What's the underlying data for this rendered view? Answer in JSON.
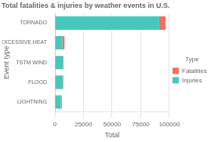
{
  "chart_data": {
    "type": "bar",
    "orientation": "horizontal",
    "stacked": true,
    "title": "Total fatalities & injuries by weather events in U.S.",
    "xlabel": "Total",
    "ylabel": "Event type",
    "categories": [
      "LIGHTNING",
      "FLOOD",
      "TSTM WIND",
      "EXCESSIVE HEAT",
      "TORNADO"
    ],
    "series": [
      {
        "name": "Injuries",
        "color": "#45C8BB",
        "values": [
          5200,
          6800,
          6900,
          6500,
          91000
        ]
      },
      {
        "name": "Fatalities",
        "color": "#F07060",
        "values": [
          800,
          470,
          500,
          1900,
          5600
        ]
      }
    ],
    "xlim": [
      0,
      100000
    ],
    "xticks": [
      0,
      25000,
      50000,
      75000,
      100000
    ],
    "grid": true,
    "legend": "right",
    "legend_title": "Type"
  }
}
